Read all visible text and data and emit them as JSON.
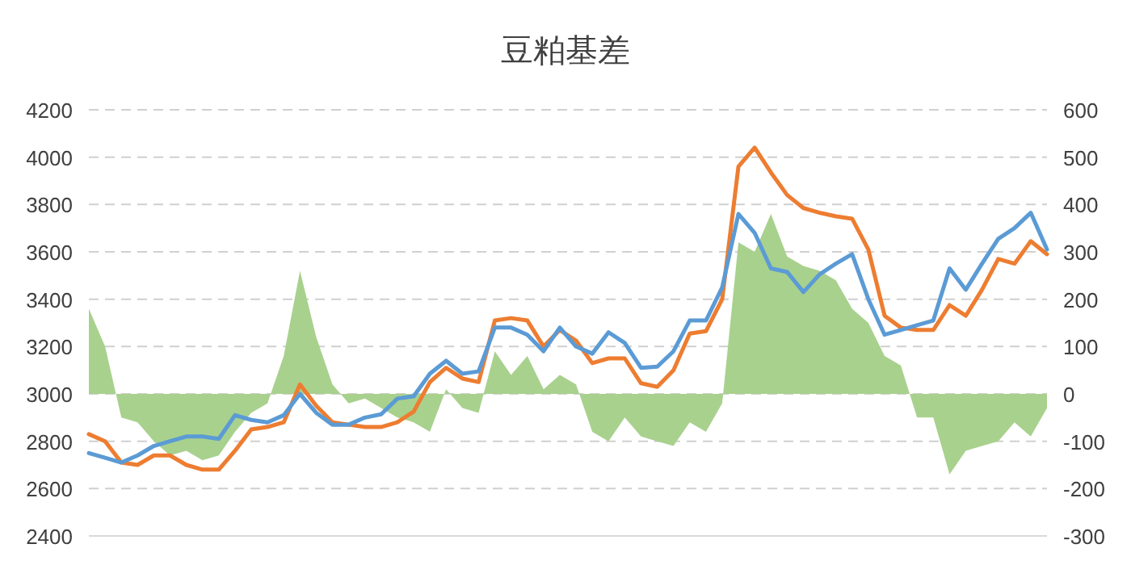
{
  "chart_data": {
    "type": "line",
    "title": "豆粕基差",
    "categories": [
      null,
      null,
      null,
      null,
      null,
      null,
      null,
      null,
      null,
      null,
      null,
      null,
      null,
      null,
      null,
      null,
      null,
      null,
      null,
      null,
      null,
      null,
      null,
      null,
      null,
      null,
      null,
      null,
      null,
      null,
      null,
      null,
      null,
      null,
      null,
      null,
      null,
      null,
      null,
      null,
      null,
      null,
      null,
      null,
      null,
      null,
      null,
      null,
      null,
      null,
      null,
      null,
      null,
      null,
      null,
      null,
      null,
      null,
      null,
      null
    ],
    "ylim": [
      2400,
      4200
    ],
    "yticks": [
      2400,
      2600,
      2800,
      3000,
      3200,
      3400,
      3600,
      3800,
      4000,
      4200
    ],
    "y2lim": [
      -300,
      600
    ],
    "y2ticks": [
      -300,
      -200,
      -100,
      0,
      100,
      200,
      300,
      400,
      500,
      600
    ],
    "grid": "y",
    "line_style": "solid",
    "marker": "none",
    "series": [
      {
        "type": "area",
        "axis": "y2",
        "color": "#a9d18e",
        "values": [
          180,
          100,
          -50,
          -60,
          -100,
          -130,
          -120,
          -140,
          -130,
          -80,
          -40,
          -20,
          80,
          260,
          120,
          20,
          -20,
          -10,
          -30,
          -50,
          -60,
          -80,
          10,
          -30,
          -40,
          90,
          40,
          80,
          10,
          40,
          20,
          -80,
          -100,
          -50,
          -90,
          -100,
          -110,
          -60,
          -80,
          -20,
          320,
          300,
          380,
          290,
          270,
          260,
          240,
          180,
          150,
          80,
          60,
          -50,
          -50,
          -170,
          -120,
          -110,
          -100,
          -60,
          -90,
          -30
        ]
      },
      {
        "color": "#ed7d31",
        "values": [
          2830,
          2800,
          2710,
          2700,
          2740,
          2740,
          2700,
          2680,
          2680,
          2760,
          2850,
          2860,
          2880,
          3040,
          2950,
          2880,
          2870,
          2860,
          2860,
          2880,
          2925,
          3050,
          3110,
          3065,
          3050,
          3310,
          3320,
          3310,
          3200,
          3270,
          3225,
          3130,
          3150,
          3150,
          3045,
          3030,
          3100,
          3255,
          3265,
          3400,
          3960,
          4040,
          3935,
          3840,
          3785,
          3765,
          3750,
          3740,
          3610,
          3330,
          3280,
          3270,
          3270,
          3375,
          3330,
          3440,
          3570,
          3550,
          3645,
          3590
        ]
      },
      {
        "color": "#5b9bd5",
        "values": [
          2750,
          2730,
          2710,
          2740,
          2780,
          2800,
          2820,
          2820,
          2810,
          2910,
          2890,
          2880,
          2910,
          3000,
          2920,
          2870,
          2870,
          2900,
          2914,
          2980,
          2990,
          3085,
          3140,
          3085,
          3095,
          3280,
          3280,
          3250,
          3180,
          3280,
          3200,
          3170,
          3260,
          3215,
          3110,
          3115,
          3180,
          3310,
          3310,
          3450,
          3760,
          3680,
          3530,
          3515,
          3430,
          3505,
          3550,
          3590,
          3400,
          3250,
          3270,
          3290,
          3310,
          3530,
          3440,
          3550,
          3655,
          3700,
          3765,
          3610
        ]
      }
    ]
  }
}
